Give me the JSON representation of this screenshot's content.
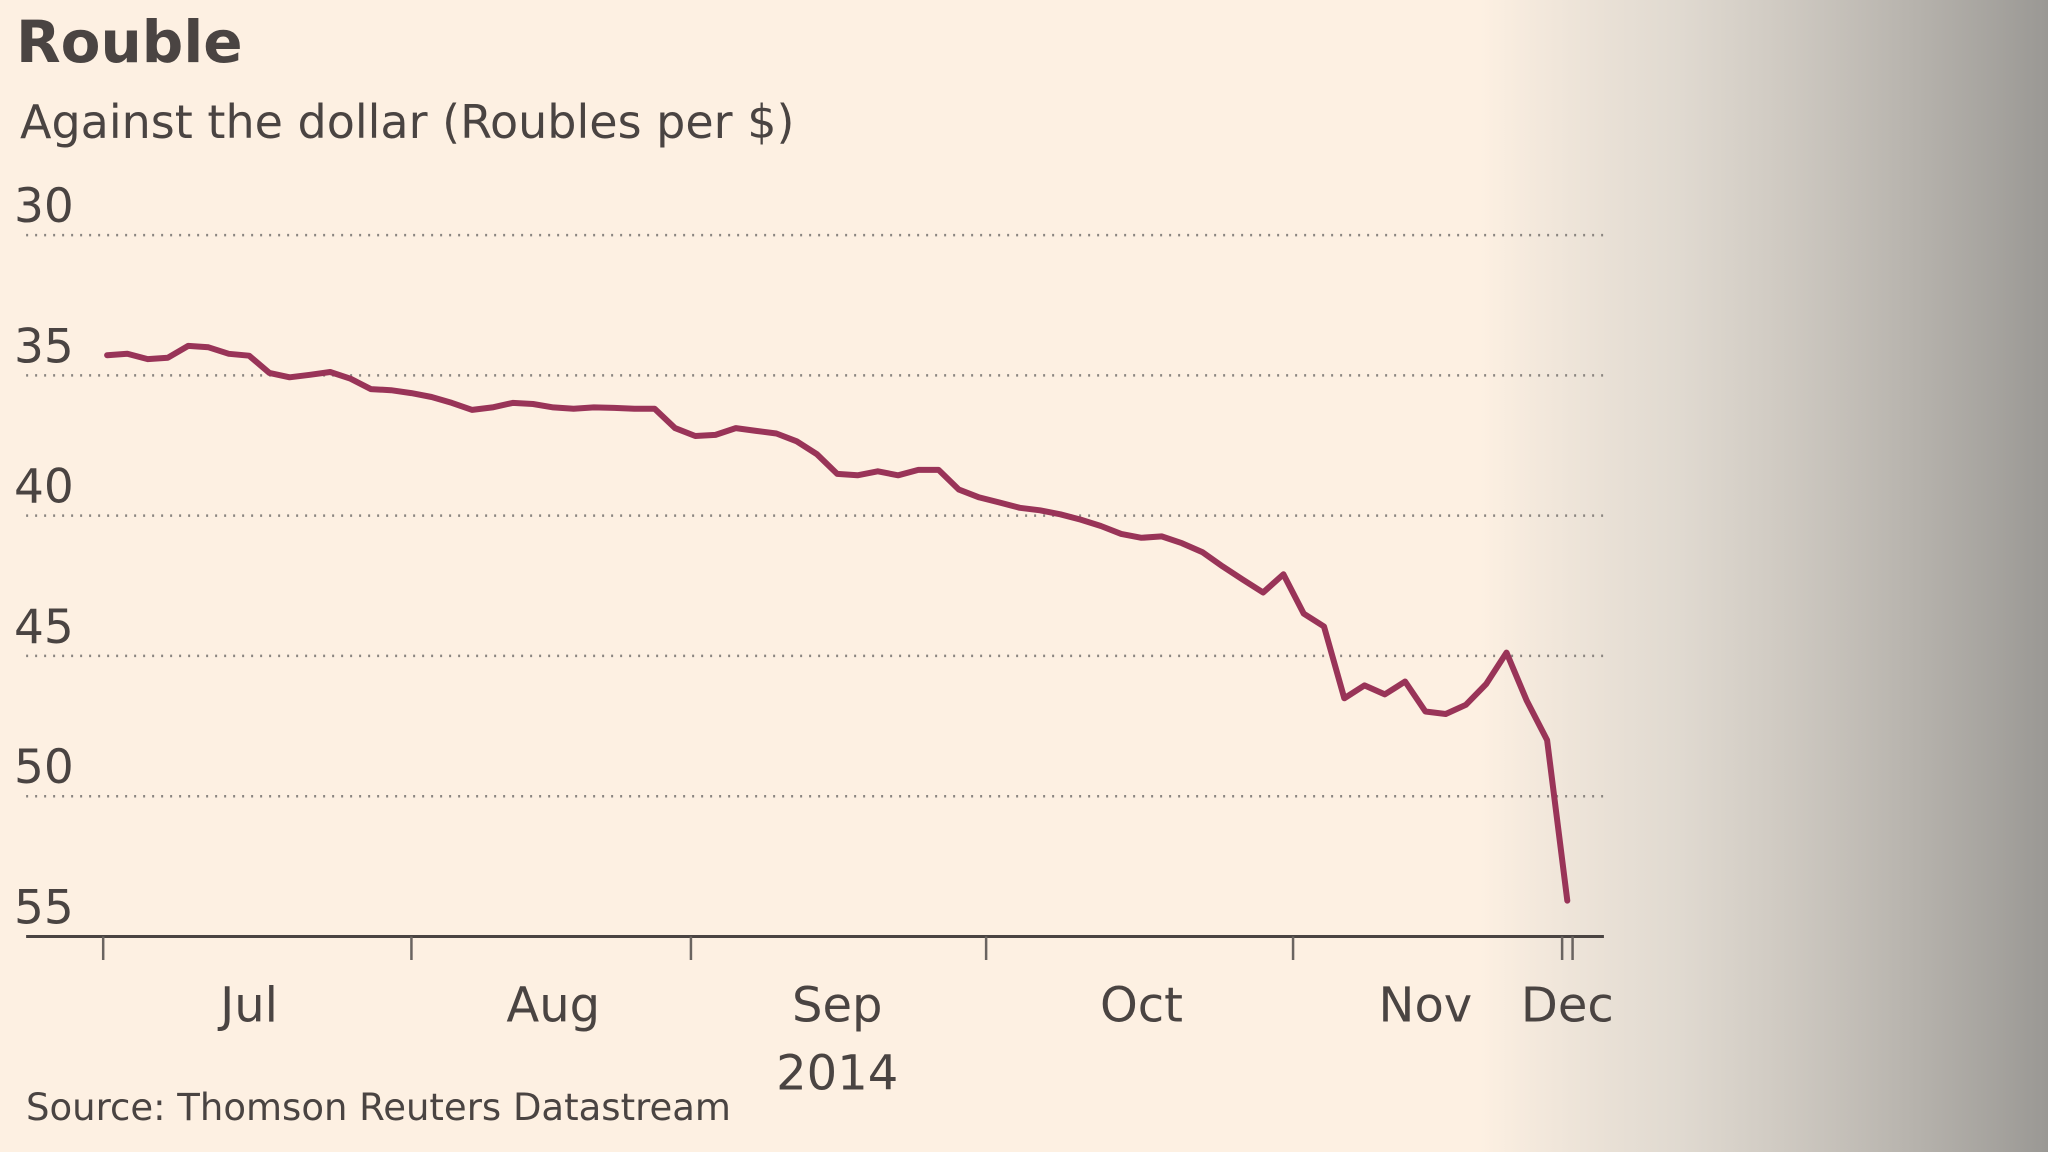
{
  "chart_data": {
    "type": "line",
    "title": "Rouble",
    "subtitle": "Against the dollar (Roubles per $)",
    "source": "Source: Thomson Reuters Datastream",
    "x_sublabel": "2014",
    "y_inverted": true,
    "grid": true,
    "ylim": [
      30,
      55
    ],
    "yticks": [
      30,
      35,
      40,
      45,
      50,
      55
    ],
    "categories": [
      null,
      null,
      null,
      null,
      null,
      null,
      null,
      "Jul",
      null,
      null,
      null,
      null,
      null,
      null,
      null,
      null,
      null,
      null,
      null,
      null,
      null,
      null,
      "Aug",
      null,
      null,
      null,
      null,
      null,
      null,
      null,
      null,
      null,
      null,
      null,
      null,
      null,
      "Sep",
      null,
      null,
      null,
      null,
      null,
      null,
      null,
      null,
      null,
      null,
      null,
      null,
      null,
      null,
      "Oct",
      null,
      null,
      null,
      null,
      null,
      null,
      null,
      null,
      null,
      null,
      null,
      null,
      null,
      "Nov",
      null,
      null,
      null,
      null,
      null,
      null,
      "Dec"
    ],
    "series": [
      {
        "name": "Roubles per $",
        "color": "#993458",
        "values": [
          34.28,
          34.23,
          34.42,
          34.37,
          33.95,
          34.0,
          34.23,
          34.3,
          34.91,
          35.07,
          34.98,
          34.88,
          35.12,
          35.49,
          35.53,
          35.63,
          35.77,
          35.98,
          36.23,
          36.14,
          35.98,
          36.02,
          36.14,
          36.19,
          36.14,
          36.16,
          36.19,
          36.19,
          36.88,
          37.16,
          37.12,
          36.88,
          36.98,
          37.07,
          37.35,
          37.81,
          38.51,
          38.56,
          38.42,
          38.56,
          38.37,
          38.37,
          39.07,
          39.35,
          39.53,
          39.72,
          39.81,
          39.95,
          40.14,
          40.37,
          40.65,
          40.79,
          40.74,
          40.98,
          41.3,
          41.81,
          42.28,
          42.74,
          42.09,
          43.49,
          43.95,
          46.51,
          46.05,
          46.37,
          45.91,
          46.98,
          47.07,
          46.74,
          46.0,
          44.88,
          46.6,
          48.0,
          53.72
        ]
      }
    ]
  }
}
